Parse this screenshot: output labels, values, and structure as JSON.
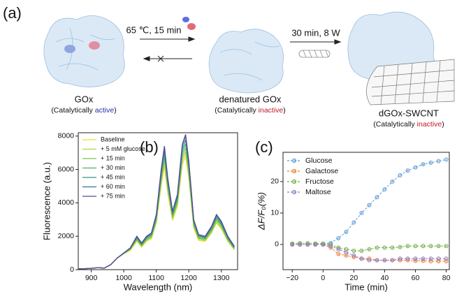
{
  "panel_labels": [
    "(a)",
    "(b)",
    "(c)"
  ],
  "scheme": {
    "native": {
      "label": "GOx",
      "note_before": "(Catalytically ",
      "note_state": "active",
      "note_after": ")"
    },
    "denatured": {
      "label": "denatured GOx",
      "note_before": "(Catalytically ",
      "note_state": "inactive",
      "note_after": ")"
    },
    "complex": {
      "label": "dGOx-SWCNT",
      "note_before": "(Catalytically ",
      "note_state": "inactive",
      "note_after": ")"
    },
    "step1": "65 ℃, 15 min",
    "step2": "30 min, 8 W"
  },
  "chart_data": [
    {
      "type": "line",
      "xlabel": "Wavelength (nm)",
      "ylabel": "Fluorescence (a.u.)",
      "xlim": [
        860,
        1350
      ],
      "ylim": [
        0,
        8200
      ],
      "xticks": [
        900,
        1000,
        1100,
        1200,
        1300
      ],
      "yticks": [
        0,
        2000,
        4000,
        6000,
        8000
      ],
      "legend": "upper left",
      "x": [
        860,
        880,
        900,
        920,
        940,
        960,
        980,
        1000,
        1020,
        1040,
        1055,
        1070,
        1085,
        1100,
        1115,
        1125,
        1135,
        1150,
        1165,
        1180,
        1190,
        1200,
        1215,
        1230,
        1250,
        1270,
        1285,
        1300,
        1320,
        1340
      ],
      "series": [
        {
          "name": "Baseline",
          "color": "#f0dc3a",
          "values": [
            50,
            60,
            80,
            120,
            90,
            300,
            700,
            950,
            1150,
            1700,
            1350,
            1700,
            1850,
            2800,
            5050,
            6200,
            4600,
            2950,
            3800,
            6300,
            6800,
            5450,
            2500,
            1750,
            1700,
            2200,
            2800,
            2450,
            1700,
            1200
          ]
        },
        {
          "name": "+ 5 mM glucose",
          "color": "#b3d63c",
          "values": [
            50,
            60,
            80,
            120,
            90,
            300,
            700,
            960,
            1190,
            1760,
            1400,
            1760,
            1910,
            2870,
            5220,
            6440,
            4790,
            3050,
            3920,
            6530,
            7050,
            5660,
            2610,
            1830,
            1740,
            2260,
            2870,
            2520,
            1740,
            1220
          ]
        },
        {
          "name": "+ 15 min",
          "color": "#78c850",
          "values": [
            50,
            60,
            80,
            120,
            90,
            300,
            700,
            970,
            1220,
            1800,
            1440,
            1800,
            1980,
            2970,
            5400,
            6660,
            4950,
            3150,
            4050,
            6750,
            7290,
            5850,
            2700,
            1890,
            1800,
            2340,
            2970,
            2610,
            1800,
            1260
          ]
        },
        {
          "name": "+ 30 min",
          "color": "#4cb07a",
          "values": [
            50,
            60,
            80,
            120,
            90,
            300,
            700,
            980,
            1250,
            1860,
            1490,
            1860,
            2050,
            3070,
            5580,
            6880,
            5120,
            3260,
            4190,
            6980,
            7530,
            6050,
            2790,
            1950,
            1860,
            2420,
            3070,
            2700,
            1860,
            1300
          ]
        },
        {
          "name": "+ 45 min",
          "color": "#37948b",
          "values": [
            50,
            60,
            80,
            120,
            90,
            300,
            700,
            990,
            1270,
            1920,
            1540,
            1920,
            2110,
            3170,
            5760,
            7100,
            5280,
            3360,
            4320,
            7200,
            7780,
            6240,
            2880,
            2020,
            1920,
            2500,
            3170,
            2780,
            1920,
            1340
          ]
        },
        {
          "name": "+ 60 min",
          "color": "#3b6ea2",
          "values": [
            50,
            60,
            80,
            120,
            90,
            300,
            700,
            1000,
            1290,
            1980,
            1580,
            1980,
            2180,
            3270,
            5940,
            7330,
            5450,
            3470,
            4460,
            7430,
            8020,
            6440,
            2970,
            2080,
            1980,
            2570,
            3270,
            2870,
            1980,
            1390
          ]
        },
        {
          "name": "+ 75 min",
          "color": "#5b4990",
          "values": [
            50,
            60,
            80,
            120,
            90,
            300,
            700,
            1000,
            1300,
            2000,
            1600,
            2000,
            2200,
            3300,
            6000,
            7400,
            5500,
            3500,
            4500,
            7500,
            8100,
            6500,
            3000,
            2100,
            2000,
            2600,
            3300,
            2900,
            2000,
            1400
          ]
        }
      ]
    },
    {
      "type": "line",
      "xlabel": "Time (min)",
      "ylabel": "ΔF/F₀(%)",
      "marker": "circle",
      "xlim": [
        -26,
        82
      ],
      "ylim": [
        -8,
        29.3
      ],
      "xticks": [
        {
          "value": -20,
          "label": "−20"
        },
        0,
        20,
        40,
        60,
        80
      ],
      "yticks": [
        0,
        10,
        20
      ],
      "legend": "upper left",
      "x": [
        -20,
        -15,
        -10,
        -5,
        0,
        5,
        10,
        15,
        20,
        25,
        30,
        35,
        40,
        45,
        50,
        55,
        60,
        65,
        70,
        75,
        80
      ],
      "series": [
        {
          "name": "Glucose",
          "color": "#5b9bd5",
          "values": [
            0,
            0,
            0,
            0,
            0,
            0.5,
            2,
            4,
            7,
            10,
            12.5,
            15,
            17.5,
            20,
            22,
            23.5,
            24.5,
            25.5,
            26,
            26.5,
            27
          ]
        },
        {
          "name": "Galactose",
          "color": "#ed7d31",
          "values": [
            0,
            0,
            0,
            0,
            0,
            -1,
            -3,
            -3.5,
            -4,
            -4.5,
            -4.5,
            -5,
            -5,
            -5,
            -5,
            -5,
            -5.2,
            -5.2,
            -5.3,
            -5.3,
            -5.3
          ]
        },
        {
          "name": "Fructose",
          "color": "#70ad47",
          "values": [
            0.3,
            0.4,
            0.4,
            0.3,
            0.3,
            0,
            -1,
            -1.5,
            -2,
            -2,
            -1.5,
            -1,
            -1,
            -1,
            -0.8,
            -0.5,
            -0.5,
            -0.5,
            -0.5,
            -0.5,
            -0.5
          ]
        },
        {
          "name": "Maltose",
          "color": "#8e7cc3",
          "values": [
            0,
            0,
            0,
            0,
            0,
            -0.5,
            -1.5,
            -2.5,
            -3.5,
            -4.5,
            -5,
            -5,
            -5,
            -5,
            -4.5,
            -4.5,
            -4.5,
            -4.5,
            -4.5,
            -4.5,
            -4.5
          ]
        }
      ]
    }
  ]
}
